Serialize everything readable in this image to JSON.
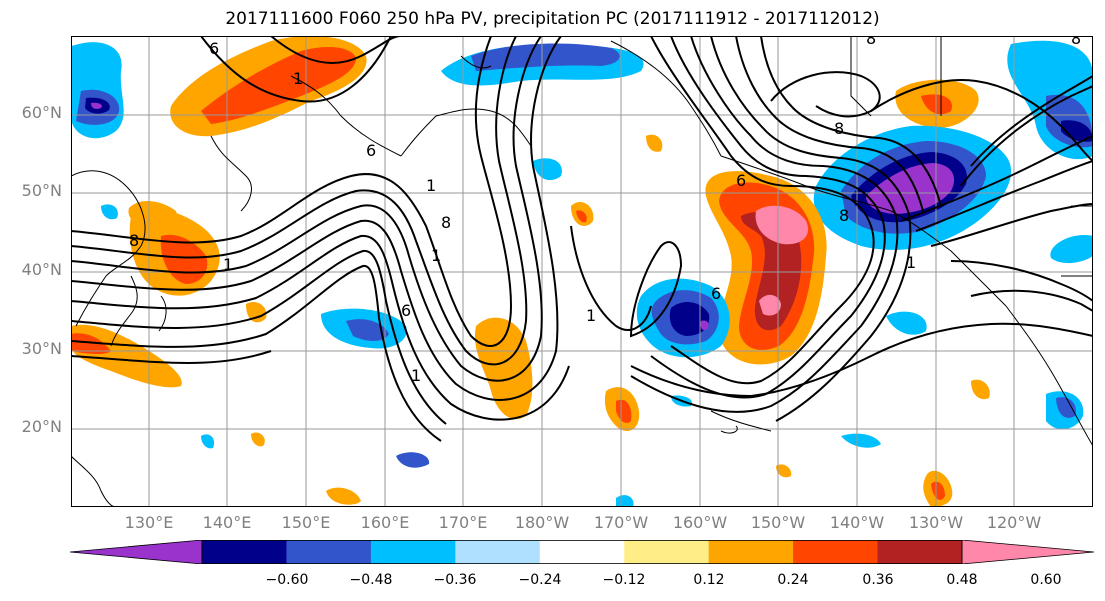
{
  "title": "2017111600 F060 250 hPa PV, precipitation PC (2017111912 - 2017112012)",
  "lat_labels": [
    "60°N",
    "50°N",
    "40°N",
    "30°N",
    "20°N"
  ],
  "lon_labels": [
    "130°E",
    "140°E",
    "150°E",
    "160°E",
    "170°E",
    "180°W",
    "170°W",
    "160°W",
    "150°W",
    "140°W",
    "130°W",
    "120°W"
  ],
  "colorbar": {
    "colors": [
      "#9933cc",
      "#00008b",
      "#3355cc",
      "#00bfff",
      "#b0e0ff",
      "#ffffff",
      "#ffee88",
      "#ffa500",
      "#ff4500",
      "#b22222",
      "#ff88aa"
    ],
    "labels": [
      "−0.60",
      "−0.48",
      "−0.36",
      "−0.24",
      "−0.12",
      "0.12",
      "0.24",
      "0.36",
      "0.48",
      "0.60"
    ]
  },
  "contour_labels": [
    "6",
    "1",
    "8",
    "1",
    "6",
    "1",
    "8",
    "1",
    "6",
    "1",
    "8",
    "1",
    "8",
    "6",
    "6",
    "8",
    "1",
    "8"
  ]
}
